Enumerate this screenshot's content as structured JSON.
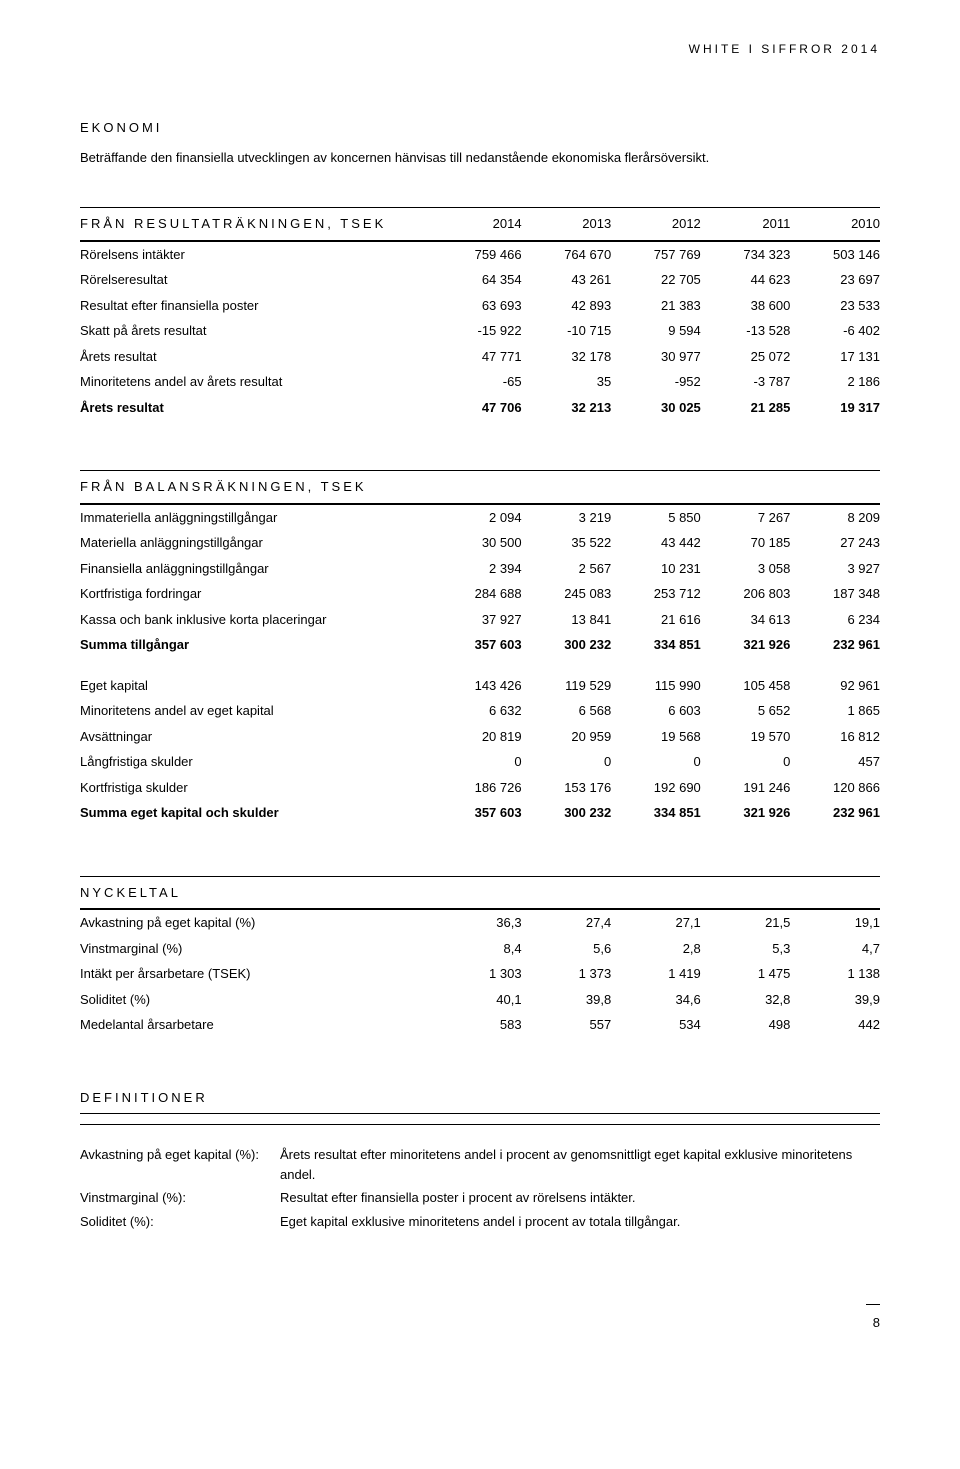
{
  "header": "WHITE I SIFFROR 2014",
  "section_ekonomi": {
    "title": "EKONOMI",
    "intro": "Beträffande den finansiella utvecklingen av koncernen hänvisas till nedanstående ekonomiska flerårsöversikt."
  },
  "table1": {
    "heading": "FRÅN RESULTATRÄKNINGEN, TSEK",
    "years": [
      "2014",
      "2013",
      "2012",
      "2011",
      "2010"
    ],
    "rows": [
      {
        "label": "Rörelsens intäkter",
        "v": [
          "759 466",
          "764 670",
          "757 769",
          "734 323",
          "503 146"
        ]
      },
      {
        "label": "Rörelseresultat",
        "v": [
          "64 354",
          "43 261",
          "22 705",
          "44 623",
          "23 697"
        ]
      },
      {
        "label": "Resultat efter finansiella poster",
        "v": [
          "63 693",
          "42 893",
          "21 383",
          "38 600",
          "23 533"
        ]
      },
      {
        "label": "Skatt på årets resultat",
        "v": [
          "-15 922",
          "-10 715",
          "9 594",
          "-13 528",
          "-6 402"
        ]
      },
      {
        "label": "Årets resultat",
        "v": [
          "47 771",
          "32 178",
          "30 977",
          "25 072",
          "17 131"
        ]
      },
      {
        "label": "Minoritetens andel av årets resultat",
        "v": [
          "-65",
          "35",
          "-952",
          "-3 787",
          "2 186"
        ]
      }
    ],
    "total": {
      "label": "Årets resultat",
      "v": [
        "47 706",
        "32 213",
        "30 025",
        "21 285",
        "19 317"
      ]
    }
  },
  "table2": {
    "heading": "FRÅN BALANSRÄKNINGEN, TSEK",
    "block1": [
      {
        "label": "Immateriella anläggningstillgångar",
        "v": [
          "2 094",
          "3 219",
          "5 850",
          "7 267",
          "8 209"
        ]
      },
      {
        "label": "Materiella anläggningstillgångar",
        "v": [
          "30 500",
          "35 522",
          "43 442",
          "70 185",
          "27 243"
        ]
      },
      {
        "label": "Finansiella anläggningstillgångar",
        "v": [
          "2 394",
          "2 567",
          "10 231",
          "3 058",
          "3 927"
        ]
      },
      {
        "label": "Kortfristiga fordringar",
        "v": [
          "284 688",
          "245 083",
          "253 712",
          "206 803",
          "187 348"
        ]
      },
      {
        "label": "Kassa och bank inklusive korta placeringar",
        "v": [
          "37 927",
          "13 841",
          "21 616",
          "34 613",
          "6 234"
        ]
      }
    ],
    "total1": {
      "label": "Summa tillgångar",
      "v": [
        "357 603",
        "300 232",
        "334 851",
        "321 926",
        "232 961"
      ]
    },
    "block2": [
      {
        "label": "Eget kapital",
        "v": [
          "143 426",
          "119 529",
          "115 990",
          "105 458",
          "92 961"
        ]
      },
      {
        "label": "Minoritetens andel av eget kapital",
        "v": [
          "6 632",
          "6 568",
          "6 603",
          "5 652",
          "1 865"
        ]
      },
      {
        "label": "Avsättningar",
        "v": [
          "20 819",
          "20 959",
          "19 568",
          "19 570",
          "16 812"
        ]
      },
      {
        "label": "Långfristiga skulder",
        "v": [
          "0",
          "0",
          "0",
          "0",
          "457"
        ]
      },
      {
        "label": "Kortfristiga skulder",
        "v": [
          "186 726",
          "153 176",
          "192 690",
          "191 246",
          "120 866"
        ]
      }
    ],
    "total2": {
      "label": "Summa eget kapital och skulder",
      "v": [
        "357 603",
        "300 232",
        "334 851",
        "321 926",
        "232 961"
      ]
    }
  },
  "table3": {
    "heading": "NYCKELTAL",
    "rows": [
      {
        "label": "Avkastning på eget kapital (%)",
        "v": [
          "36,3",
          "27,4",
          "27,1",
          "21,5",
          "19,1"
        ]
      },
      {
        "label": "Vinstmarginal (%)",
        "v": [
          "8,4",
          "5,6",
          "2,8",
          "5,3",
          "4,7"
        ]
      },
      {
        "label": "Intäkt per årsarbetare (TSEK)",
        "v": [
          "1 303",
          "1 373",
          "1 419",
          "1 475",
          "1 138"
        ]
      },
      {
        "label": "Soliditet (%)",
        "v": [
          "40,1",
          "39,8",
          "34,6",
          "32,8",
          "39,9"
        ]
      },
      {
        "label": "Medelantal årsarbetare",
        "v": [
          "583",
          "557",
          "534",
          "498",
          "442"
        ]
      }
    ]
  },
  "definitions": {
    "heading": "DEFINITIONER",
    "rows": [
      {
        "label": "Avkastning på eget kapital (%):",
        "text": "Årets resultat efter minoritetens andel i procent av genomsnittligt eget kapital exklusive minoritetens andel."
      },
      {
        "label": "Vinstmarginal (%):",
        "text": "Resultat efter finansiella poster i procent av rörelsens intäkter."
      },
      {
        "label": "Soliditet (%):",
        "text": "Eget kapital exklusive minoritetens andel i procent av totala tillgångar."
      }
    ]
  },
  "page_number": "8"
}
